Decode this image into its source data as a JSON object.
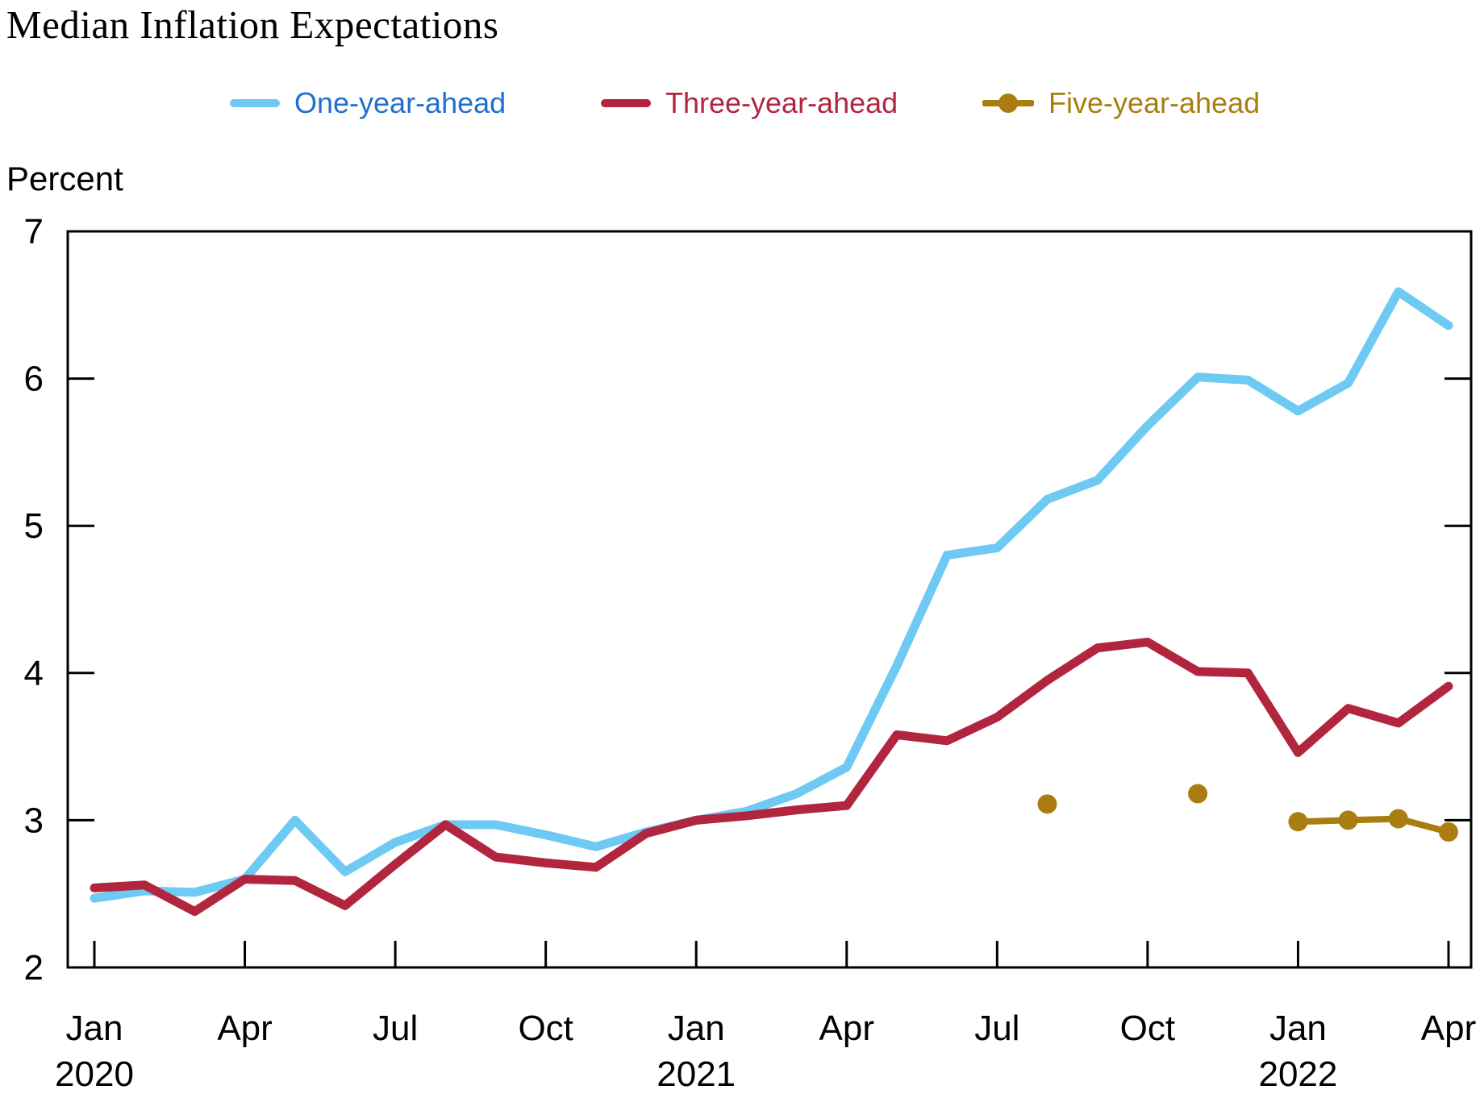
{
  "title": "Median Inflation Expectations",
  "y_axis": {
    "label": "Percent",
    "min": 2,
    "max": 7,
    "ticks": [
      2,
      3,
      4,
      5,
      6,
      7
    ]
  },
  "legend": [
    {
      "label": "One-year-ahead",
      "text_color": "#1F6FD2",
      "line_color": "#6EC9F3",
      "marker": "line"
    },
    {
      "label": "Three-year-ahead",
      "text_color": "#B2253F",
      "line_color": "#B2253F",
      "marker": "line"
    },
    {
      "label": "Five-year-ahead",
      "text_color": "#A87E0F",
      "line_color": "#AA7D10",
      "marker": "line-dot"
    }
  ],
  "chart_data": {
    "type": "line",
    "title": "Median Inflation Expectations",
    "ylabel": "Percent",
    "ylim": [
      2,
      7
    ],
    "grid": false,
    "legend_position": "top",
    "x": [
      "Jan 2020",
      "Feb 2020",
      "Mar 2020",
      "Apr 2020",
      "May 2020",
      "Jun 2020",
      "Jul 2020",
      "Aug 2020",
      "Sep 2020",
      "Oct 2020",
      "Nov 2020",
      "Dec 2020",
      "Jan 2021",
      "Feb 2021",
      "Mar 2021",
      "Apr 2021",
      "May 2021",
      "Jun 2021",
      "Jul 2021",
      "Aug 2021",
      "Sep 2021",
      "Oct 2021",
      "Nov 2021",
      "Dec 2021",
      "Jan 2022",
      "Feb 2022",
      "Mar 2022",
      "Apr 2022"
    ],
    "x_tick_every": 3,
    "x_tick_months": [
      "Jan",
      "Apr",
      "Jul",
      "Oct",
      "Jan",
      "Apr",
      "Jul",
      "Oct",
      "Jan",
      "Apr"
    ],
    "x_tick_years": {
      "0": "2020",
      "12": "2021",
      "24": "2022"
    },
    "series": [
      {
        "name": "One-year-ahead",
        "color": "#6EC9F3",
        "line_width": 11,
        "marker": "none",
        "values": [
          2.47,
          2.52,
          2.51,
          2.6,
          3.0,
          2.65,
          2.85,
          2.97,
          2.97,
          2.9,
          2.82,
          2.92,
          3.0,
          3.06,
          3.18,
          3.36,
          4.05,
          4.8,
          4.85,
          5.18,
          5.31,
          5.68,
          6.01,
          5.99,
          5.78,
          5.97,
          6.59,
          6.36
        ]
      },
      {
        "name": "Three-year-ahead",
        "color": "#B2253F",
        "line_width": 11,
        "marker": "none",
        "values": [
          2.54,
          2.56,
          2.38,
          2.6,
          2.59,
          2.42,
          2.7,
          2.97,
          2.75,
          2.71,
          2.68,
          2.91,
          3.0,
          3.03,
          3.07,
          3.1,
          3.58,
          3.54,
          3.7,
          3.95,
          4.17,
          4.21,
          4.01,
          4.0,
          3.46,
          3.76,
          3.66,
          3.91
        ]
      },
      {
        "name": "Five-year-ahead",
        "color": "#AA7D10",
        "line_width": 8,
        "marker": "dot",
        "marker_radius": 12,
        "values": [
          null,
          null,
          null,
          null,
          null,
          null,
          null,
          null,
          null,
          null,
          null,
          null,
          null,
          null,
          null,
          null,
          null,
          null,
          null,
          3.11,
          null,
          null,
          3.18,
          null,
          2.99,
          3.0,
          3.01,
          2.92
        ]
      }
    ]
  }
}
